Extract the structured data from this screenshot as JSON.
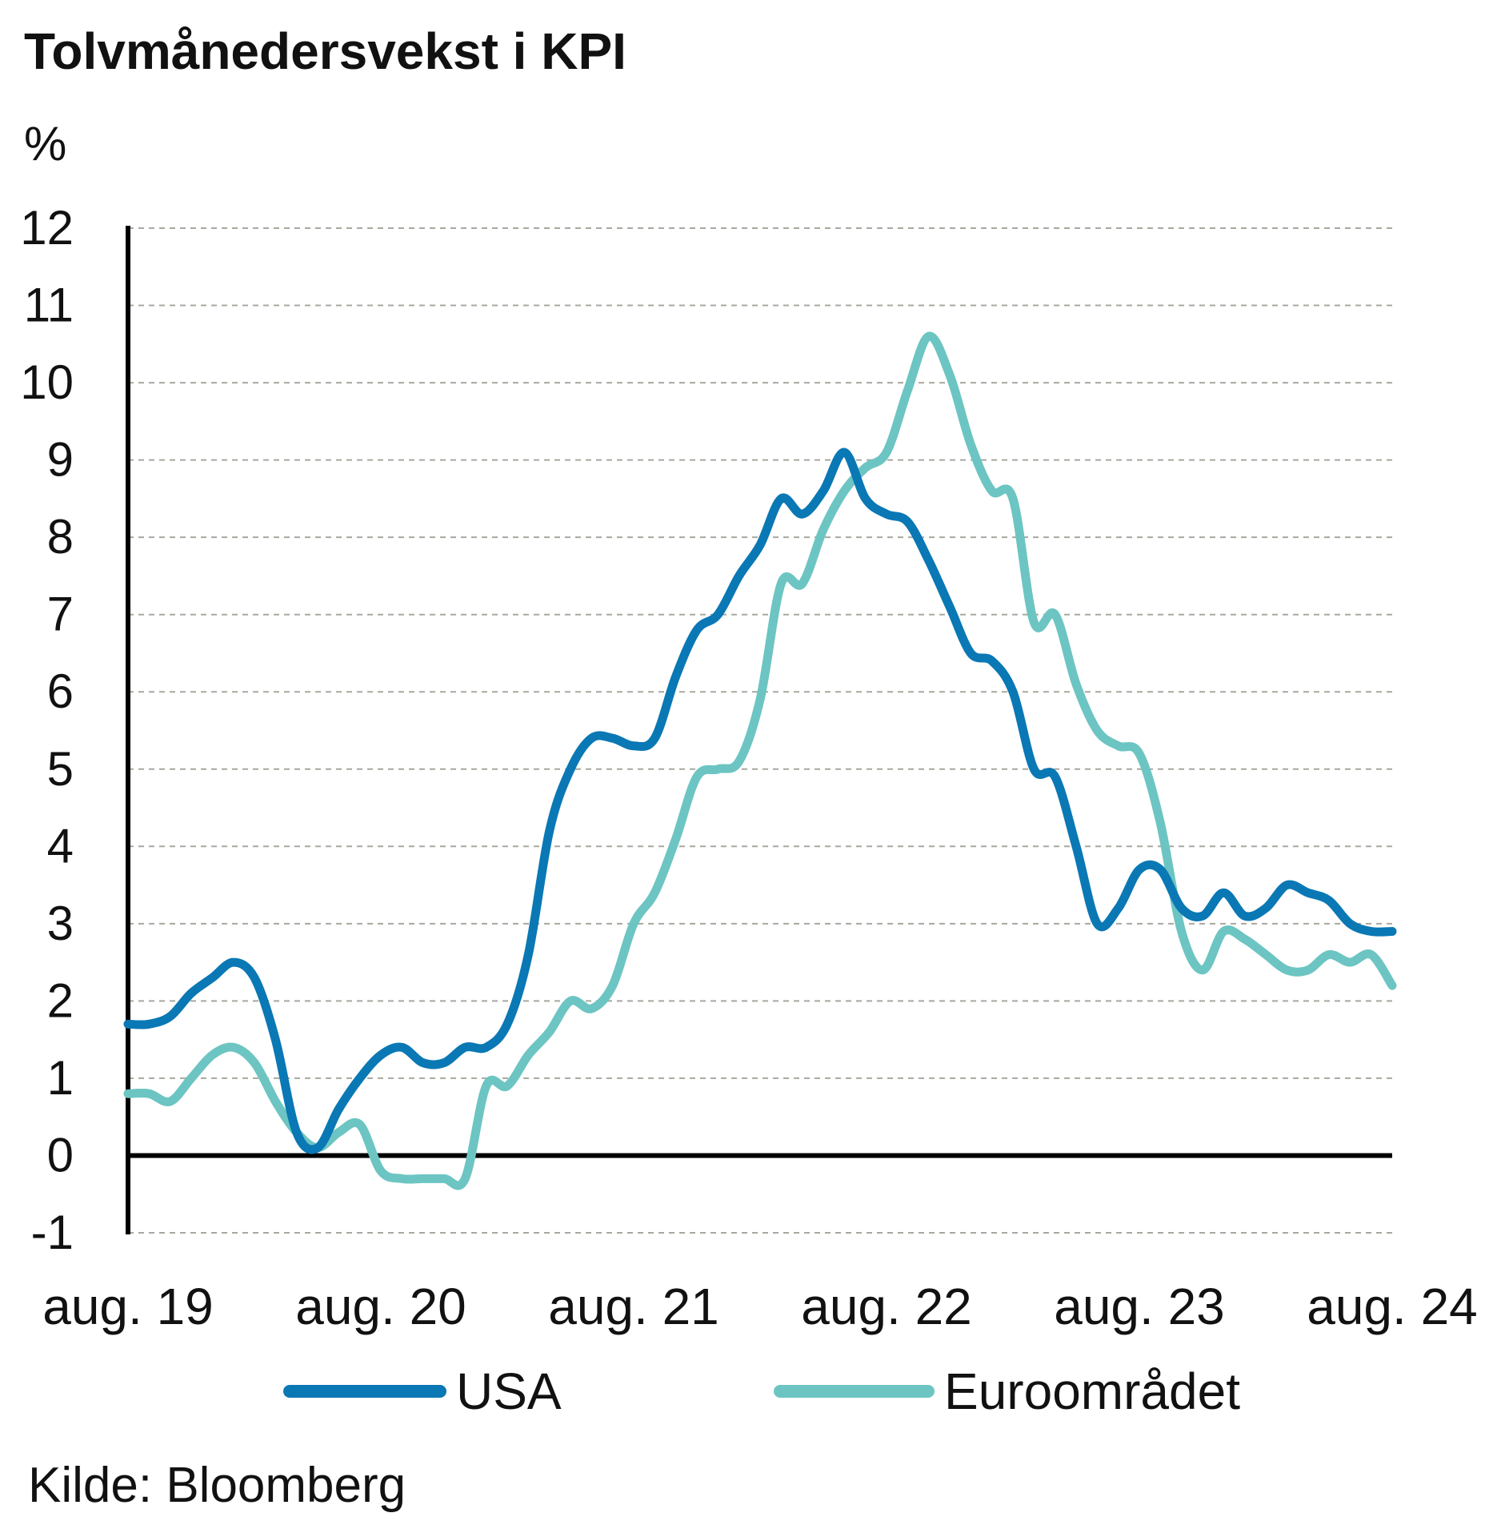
{
  "chart_data": {
    "type": "line",
    "title": "Tolvmånedersvekst i KPI",
    "ylabel": "%",
    "ylim": [
      -1,
      12
    ],
    "yticks": [
      "12",
      "11",
      "10",
      "9",
      "8",
      "7",
      "6",
      "5",
      "4",
      "3",
      "2",
      "1",
      "0",
      "-1"
    ],
    "xtick_labels": [
      "aug. 19",
      "aug. 20",
      "aug. 21",
      "aug. 22",
      "aug. 23",
      "aug. 24"
    ],
    "xlim": [
      "2019-08",
      "2024-08"
    ],
    "grid": "horizontal dashed",
    "legend_position": "bottom",
    "source": "Kilde: Bloomberg",
    "series": [
      {
        "name": "USA",
        "color": "#0a78b4",
        "points": [
          [
            "2019-08",
            1.7
          ],
          [
            "2019-09",
            1.7
          ],
          [
            "2019-10",
            1.8
          ],
          [
            "2019-11",
            2.1
          ],
          [
            "2019-12",
            2.3
          ],
          [
            "2020-01",
            2.5
          ],
          [
            "2020-02",
            2.3
          ],
          [
            "2020-03",
            1.5
          ],
          [
            "2020-04",
            0.3
          ],
          [
            "2020-05",
            0.1
          ],
          [
            "2020-06",
            0.6
          ],
          [
            "2020-07",
            1.0
          ],
          [
            "2020-08",
            1.3
          ],
          [
            "2020-09",
            1.4
          ],
          [
            "2020-10",
            1.2
          ],
          [
            "2020-11",
            1.2
          ],
          [
            "2020-12",
            1.4
          ],
          [
            "2021-01",
            1.4
          ],
          [
            "2021-02",
            1.7
          ],
          [
            "2021-03",
            2.6
          ],
          [
            "2021-04",
            4.2
          ],
          [
            "2021-05",
            5.0
          ],
          [
            "2021-06",
            5.4
          ],
          [
            "2021-07",
            5.4
          ],
          [
            "2021-08",
            5.3
          ],
          [
            "2021-09",
            5.4
          ],
          [
            "2021-10",
            6.2
          ],
          [
            "2021-11",
            6.8
          ],
          [
            "2021-12",
            7.0
          ],
          [
            "2021-13",
            7.5
          ],
          [
            "2022-02",
            7.9
          ],
          [
            "2022-03",
            8.5
          ],
          [
            "2022-04",
            8.3
          ],
          [
            "2022-05",
            8.6
          ],
          [
            "2022-06",
            9.1
          ],
          [
            "2022-07",
            8.5
          ],
          [
            "2022-08",
            8.3
          ],
          [
            "2022-09",
            8.2
          ],
          [
            "2022-10",
            7.7
          ],
          [
            "2022-11",
            7.1
          ],
          [
            "2022-12",
            6.5
          ],
          [
            "2023-01",
            6.4
          ],
          [
            "2023-02",
            6.0
          ],
          [
            "2023-03",
            5.0
          ],
          [
            "2023-04",
            4.9
          ],
          [
            "2023-05",
            4.0
          ],
          [
            "2023-06",
            3.0
          ],
          [
            "2023-07",
            3.2
          ],
          [
            "2023-08",
            3.7
          ],
          [
            "2023-09",
            3.7
          ],
          [
            "2023-10",
            3.2
          ],
          [
            "2023-11",
            3.1
          ],
          [
            "2023-12",
            3.4
          ],
          [
            "2024-01",
            3.1
          ],
          [
            "2024-02",
            3.2
          ],
          [
            "2024-03",
            3.5
          ],
          [
            "2024-04",
            3.4
          ],
          [
            "2024-05",
            3.3
          ],
          [
            "2024-06",
            3.0
          ],
          [
            "2024-07",
            2.9
          ],
          [
            "2024-08",
            2.9
          ]
        ]
      },
      {
        "name": "Euroområdet",
        "color": "#6cc5c2",
        "points": [
          [
            "2019-08",
            0.8
          ],
          [
            "2019-09",
            0.8
          ],
          [
            "2019-10",
            0.7
          ],
          [
            "2019-11",
            1.0
          ],
          [
            "2019-12",
            1.3
          ],
          [
            "2020-01",
            1.4
          ],
          [
            "2020-02",
            1.2
          ],
          [
            "2020-03",
            0.7
          ],
          [
            "2020-04",
            0.3
          ],
          [
            "2020-05",
            0.1
          ],
          [
            "2020-06",
            0.3
          ],
          [
            "2020-07",
            0.4
          ],
          [
            "2020-08",
            -0.2
          ],
          [
            "2020-09",
            -0.3
          ],
          [
            "2020-10",
            -0.3
          ],
          [
            "2020-11",
            -0.3
          ],
          [
            "2020-12",
            -0.3
          ],
          [
            "2021-01",
            0.9
          ],
          [
            "2021-02",
            0.9
          ],
          [
            "2021-03",
            1.3
          ],
          [
            "2021-04",
            1.6
          ],
          [
            "2021-05",
            2.0
          ],
          [
            "2021-06",
            1.9
          ],
          [
            "2021-07",
            2.2
          ],
          [
            "2021-08",
            3.0
          ],
          [
            "2021-09",
            3.4
          ],
          [
            "2021-10",
            4.1
          ],
          [
            "2021-11",
            4.9
          ],
          [
            "2021-12",
            5.0
          ],
          [
            "2022-01",
            5.1
          ],
          [
            "2022-02",
            5.9
          ],
          [
            "2022-03",
            7.4
          ],
          [
            "2022-04",
            7.4
          ],
          [
            "2022-05",
            8.1
          ],
          [
            "2022-06",
            8.6
          ],
          [
            "2022-07",
            8.9
          ],
          [
            "2022-08",
            9.1
          ],
          [
            "2022-09",
            9.9
          ],
          [
            "2022-10",
            10.6
          ],
          [
            "2022-11",
            10.1
          ],
          [
            "2022-12",
            9.2
          ],
          [
            "2023-01",
            8.6
          ],
          [
            "2023-02",
            8.5
          ],
          [
            "2023-03",
            6.9
          ],
          [
            "2023-04",
            7.0
          ],
          [
            "2023-05",
            6.1
          ],
          [
            "2023-06",
            5.5
          ],
          [
            "2023-07",
            5.3
          ],
          [
            "2023-08",
            5.2
          ],
          [
            "2023-09",
            4.3
          ],
          [
            "2023-10",
            2.9
          ],
          [
            "2023-11",
            2.4
          ],
          [
            "2023-12",
            2.9
          ],
          [
            "2024-01",
            2.8
          ],
          [
            "2024-02",
            2.6
          ],
          [
            "2024-03",
            2.4
          ],
          [
            "2024-04",
            2.4
          ],
          [
            "2024-05",
            2.6
          ],
          [
            "2024-06",
            2.5
          ],
          [
            "2024-07",
            2.6
          ],
          [
            "2024-08",
            2.2
          ]
        ]
      }
    ]
  }
}
